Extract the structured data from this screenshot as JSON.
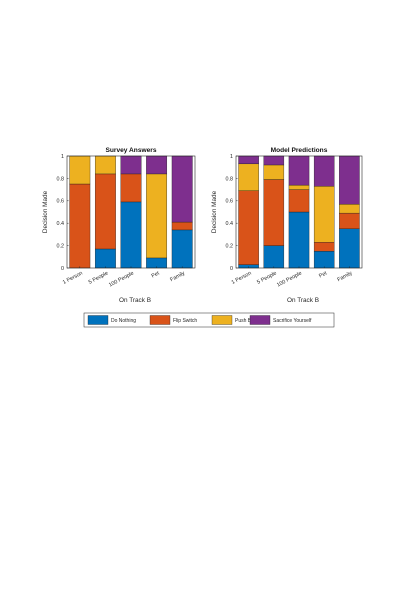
{
  "legend": [
    {
      "name": "Do Nothing",
      "color": "#0072BD"
    },
    {
      "name": "Flip Switch",
      "color": "#D95319"
    },
    {
      "name": "Push B",
      "color": "#EDB120"
    },
    {
      "name": "Sacrifice Yourself",
      "color": "#7E2F8E"
    }
  ],
  "chart_data": [
    {
      "type": "bar",
      "stacked": true,
      "title": "Survey Answers",
      "xlabel": "On Track B",
      "ylabel": "Decision Made",
      "ylim": [
        0,
        1
      ],
      "yticks": [
        "0",
        "0.2",
        "0.4",
        "0.6",
        "0.8",
        "1"
      ],
      "categories": [
        "1 Person",
        "5 People",
        "100 People",
        "Pet",
        "Family"
      ],
      "series": [
        {
          "name": "Do Nothing",
          "values": [
            0.0,
            0.17,
            0.59,
            0.09,
            0.34
          ]
        },
        {
          "name": "Flip Switch",
          "values": [
            0.75,
            0.67,
            0.25,
            0.0,
            0.07
          ]
        },
        {
          "name": "Push B",
          "values": [
            0.25,
            0.16,
            0.0,
            0.75,
            0.0
          ]
        },
        {
          "name": "Sacrifice Yourself",
          "values": [
            0.0,
            0.0,
            0.16,
            0.16,
            0.59
          ]
        }
      ]
    },
    {
      "type": "bar",
      "stacked": true,
      "title": "Model Predictions",
      "xlabel": "On Track B",
      "ylabel": "Decision Made",
      "ylim": [
        0,
        1
      ],
      "yticks": [
        "0",
        "0.2",
        "0.4",
        "0.6",
        "0.8",
        "1"
      ],
      "categories": [
        "1 Person",
        "5 People",
        "100 People",
        "Pet",
        "Family"
      ],
      "series": [
        {
          "name": "Do Nothing",
          "values": [
            0.03,
            0.2,
            0.5,
            0.15,
            0.35
          ]
        },
        {
          "name": "Flip Switch",
          "values": [
            0.66,
            0.59,
            0.2,
            0.08,
            0.14
          ]
        },
        {
          "name": "Push B",
          "values": [
            0.24,
            0.13,
            0.04,
            0.5,
            0.08
          ]
        },
        {
          "name": "Sacrifice Yourself",
          "values": [
            0.07,
            0.08,
            0.26,
            0.27,
            0.43
          ]
        }
      ]
    }
  ]
}
